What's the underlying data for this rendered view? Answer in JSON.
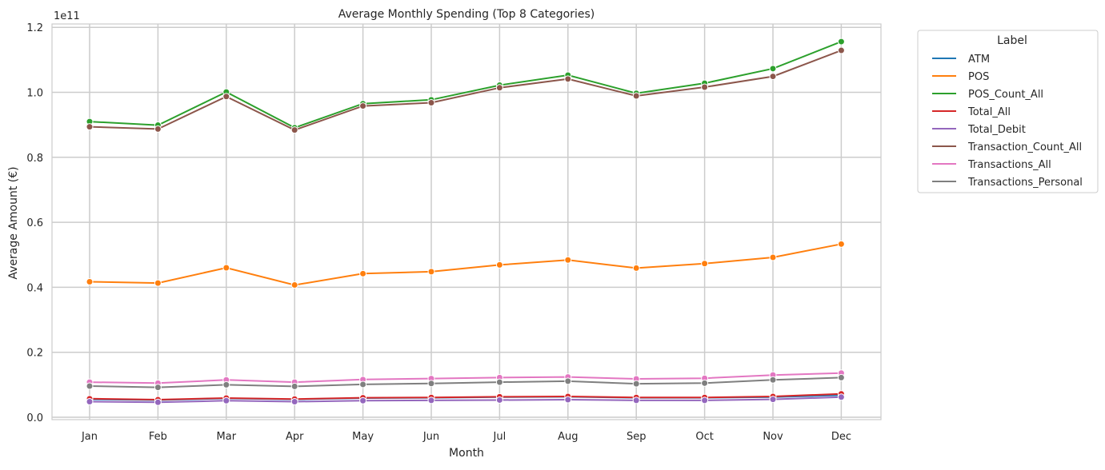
{
  "chart_data": {
    "type": "line",
    "title": "Average Monthly Spending (Top 8 Categories)",
    "xlabel": "Month",
    "ylabel": "Average Amount (€)",
    "y_scale_note": "1e11",
    "categories": [
      "Jan",
      "Feb",
      "Mar",
      "Apr",
      "May",
      "Jun",
      "Jul",
      "Aug",
      "Sep",
      "Oct",
      "Nov",
      "Dec"
    ],
    "ylim": [
      0,
      1.21
    ],
    "yticks": [
      0.0,
      0.2,
      0.4,
      0.6,
      0.8,
      1.0,
      1.2
    ],
    "ytick_labels": [
      "0.0",
      "0.2",
      "0.4",
      "0.6",
      "0.8",
      "1.0",
      "1.2"
    ],
    "grid": true,
    "legend": {
      "title": "Label",
      "placement": "outside-right"
    },
    "series": [
      {
        "name": "ATM",
        "color": "#1f77b4",
        "values": [
          0.055,
          0.053,
          0.058,
          0.055,
          0.059,
          0.06,
          0.062,
          0.063,
          0.06,
          0.06,
          0.062,
          0.068
        ]
      },
      {
        "name": "POS",
        "color": "#ff7f0e",
        "values": [
          0.417,
          0.413,
          0.46,
          0.407,
          0.442,
          0.448,
          0.469,
          0.484,
          0.459,
          0.473,
          0.492,
          0.533
        ]
      },
      {
        "name": "POS_Count_All",
        "color": "#2ca02c",
        "values": [
          0.91,
          0.899,
          1.001,
          0.891,
          0.965,
          0.977,
          1.022,
          1.053,
          0.997,
          1.028,
          1.073,
          1.156
        ]
      },
      {
        "name": "Total_All",
        "color": "#d62728",
        "values": [
          0.057,
          0.054,
          0.059,
          0.056,
          0.06,
          0.061,
          0.063,
          0.064,
          0.061,
          0.061,
          0.064,
          0.072
        ]
      },
      {
        "name": "Total_Debit",
        "color": "#9467bd",
        "values": [
          0.048,
          0.046,
          0.051,
          0.048,
          0.051,
          0.052,
          0.053,
          0.054,
          0.052,
          0.052,
          0.055,
          0.062
        ]
      },
      {
        "name": "Transaction_Count_All",
        "color": "#8c564b",
        "values": [
          0.894,
          0.887,
          0.987,
          0.884,
          0.958,
          0.968,
          1.014,
          1.041,
          0.989,
          1.016,
          1.049,
          1.129
        ]
      },
      {
        "name": "Transactions_All",
        "color": "#e377c2",
        "values": [
          0.108,
          0.105,
          0.115,
          0.108,
          0.116,
          0.119,
          0.122,
          0.124,
          0.118,
          0.12,
          0.13,
          0.136
        ]
      },
      {
        "name": "Transactions_Personal",
        "color": "#7f7f7f",
        "values": [
          0.096,
          0.092,
          0.1,
          0.095,
          0.101,
          0.104,
          0.108,
          0.111,
          0.103,
          0.105,
          0.115,
          0.122
        ]
      }
    ]
  }
}
